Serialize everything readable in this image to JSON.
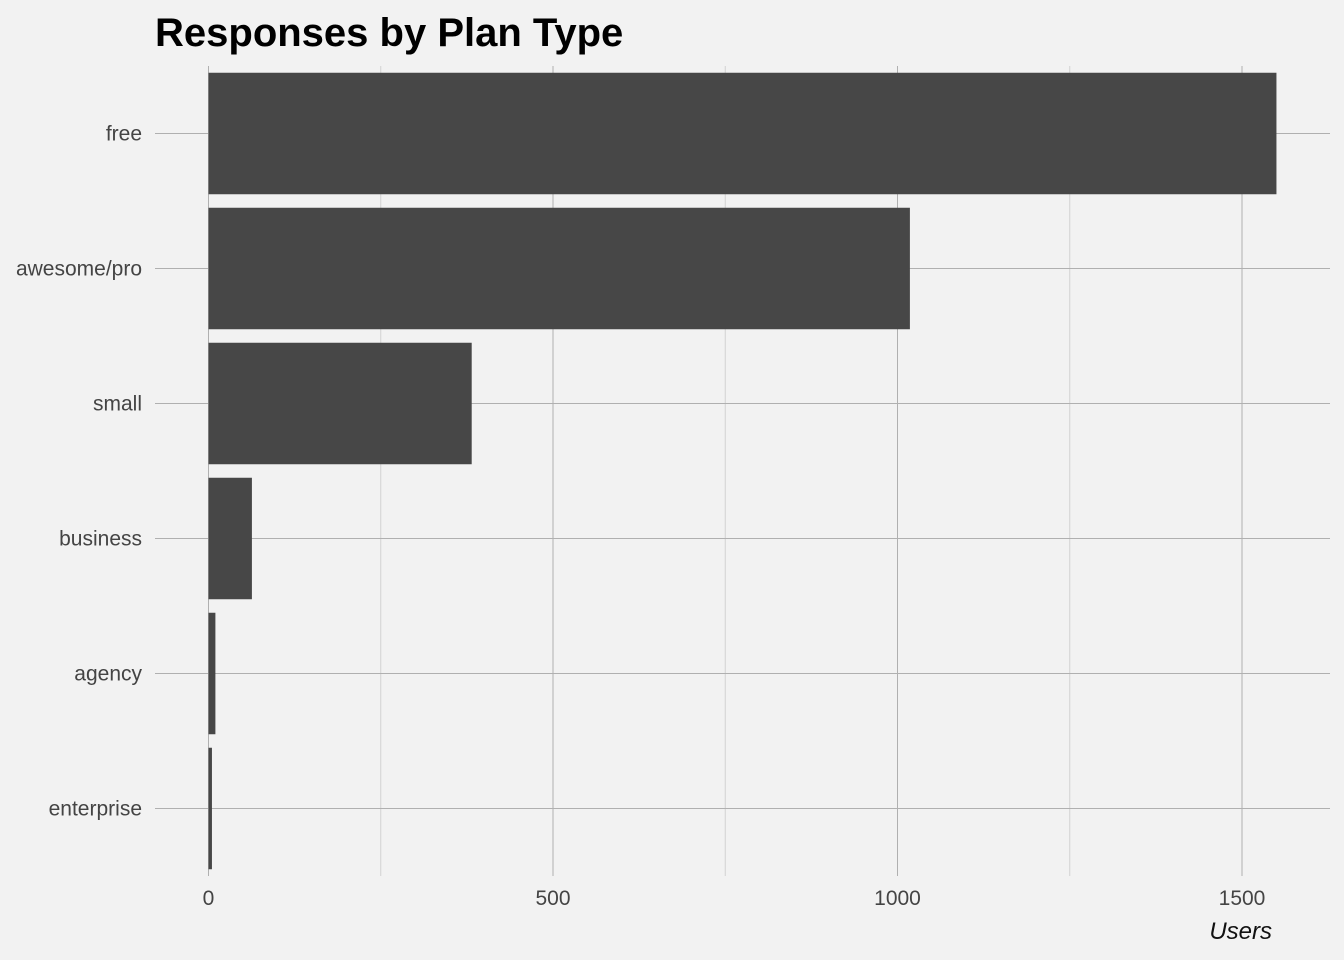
{
  "chart_data": {
    "type": "bar",
    "orientation": "horizontal",
    "title": "Responses by Plan Type",
    "xlabel": "Users",
    "ylabel": "",
    "categories": [
      "free",
      "awesome/pro",
      "small",
      "business",
      "agency",
      "enterprise"
    ],
    "values": [
      1550,
      1018,
      382,
      63,
      10,
      5
    ],
    "xlim": [
      -75,
      1640
    ],
    "x_ticks": [
      0,
      500,
      1000,
      1500
    ],
    "x_tick_labels": [
      "0",
      "500",
      "1000",
      "1500"
    ],
    "x_minor_ticks": [
      250,
      750,
      1250
    ],
    "grid": true,
    "legend": "none",
    "colors": {
      "background": "#f2f2f2",
      "bar": "#474747",
      "grid_major": "#b0b0b0",
      "grid_minor": "#d2d2d2"
    }
  }
}
